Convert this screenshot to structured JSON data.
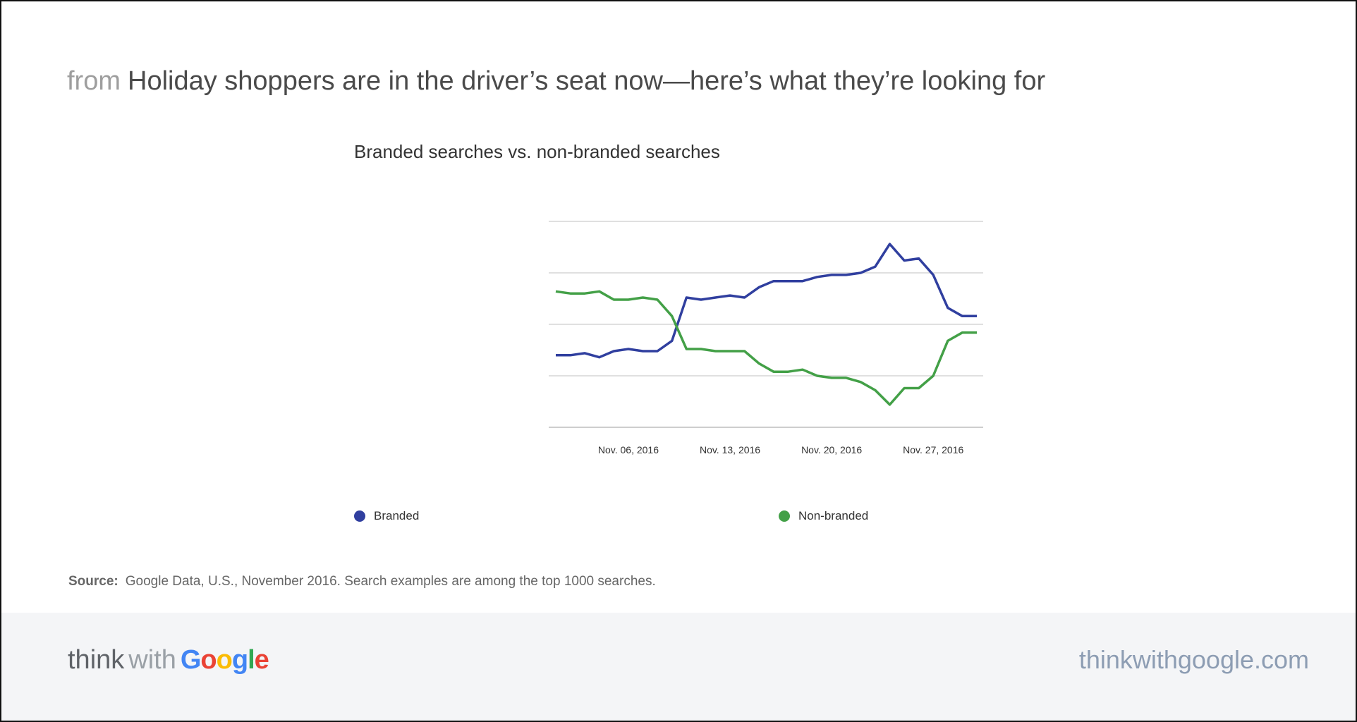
{
  "header": {
    "from_label": "from",
    "title": "Holiday shoppers are in the driver’s seat now—here’s what they’re looking for"
  },
  "chart_data": {
    "type": "line",
    "title": "Branded searches vs. non-branded searches",
    "xlabel": "",
    "ylabel": "",
    "x_tick_labels": [
      "Nov. 06, 2016",
      "Nov. 13, 2016",
      "Nov. 20, 2016",
      "Nov. 27, 2016"
    ],
    "x_tick_positions": [
      5,
      12,
      19,
      26
    ],
    "ylim": [
      0,
      100
    ],
    "grid": true,
    "legend_position": "bottom",
    "series": [
      {
        "name": "Branded",
        "color": "#303f9f",
        "values": [
          35,
          35,
          36,
          34,
          37,
          38,
          37,
          37,
          42,
          63,
          62,
          63,
          64,
          63,
          68,
          71,
          71,
          71,
          73,
          74,
          74,
          75,
          78,
          89,
          81,
          82,
          74,
          58,
          54,
          54
        ]
      },
      {
        "name": "Non-branded",
        "color": "#43a047",
        "values": [
          66,
          65,
          65,
          66,
          62,
          62,
          63,
          62,
          54,
          38,
          38,
          37,
          37,
          37,
          31,
          27,
          27,
          28,
          25,
          24,
          24,
          22,
          18,
          11,
          19,
          19,
          25,
          42,
          46,
          46
        ]
      }
    ]
  },
  "legend": {
    "branded_label": "Branded",
    "nonbranded_label": "Non-branded",
    "branded_color": "#303f9f",
    "nonbranded_color": "#43a047"
  },
  "source": {
    "label": "Source:",
    "text": "Google Data, U.S., November 2016. Search examples are among the top 1000 searches."
  },
  "footer": {
    "brand_think": "think",
    "brand_with": "with",
    "brand_google": "Google",
    "url": "thinkwithgoogle.com"
  }
}
